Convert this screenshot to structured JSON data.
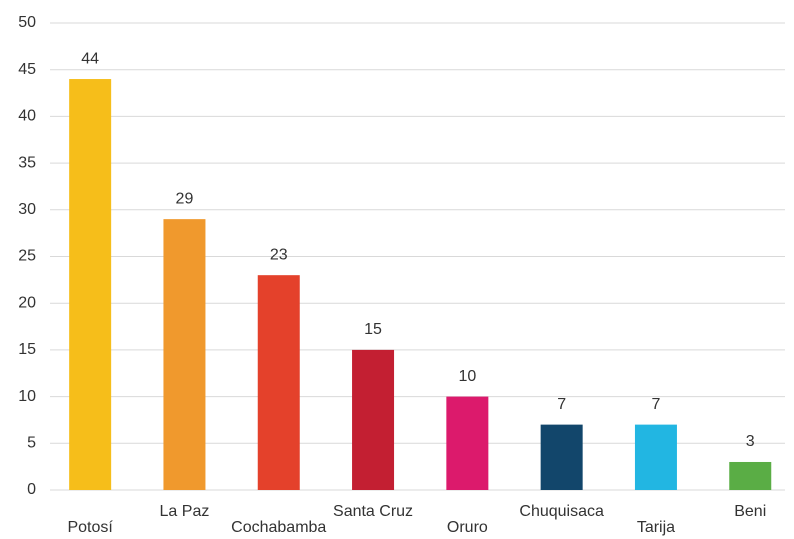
{
  "chart_data": {
    "type": "bar",
    "categories": [
      "Potosí",
      "La Paz",
      "Cochabamba",
      "Santa Cruz",
      "Oruro",
      "Chuquisaca",
      "Tarija",
      "Beni"
    ],
    "values": [
      44,
      29,
      23,
      15,
      10,
      7,
      7,
      3
    ],
    "colors": [
      "#f6be1a",
      "#f0992d",
      "#e4412b",
      "#c31f32",
      "#dc1a6c",
      "#12466b",
      "#22b6e2",
      "#5aad45"
    ],
    "ylim": [
      0,
      50
    ],
    "yticks": [
      0,
      5,
      10,
      15,
      20,
      25,
      30,
      35,
      40,
      45,
      50
    ],
    "grid": true
  }
}
